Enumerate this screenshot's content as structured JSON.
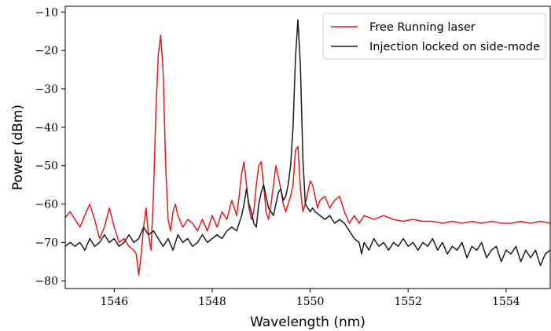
{
  "chart_data": {
    "type": "line",
    "xlabel": "Wavelength (nm)",
    "ylabel": "Power (dBm)",
    "xlim": [
      1545,
      1554.9
    ],
    "ylim": [
      -82,
      -8.5
    ],
    "xticks": [
      1546,
      1548,
      1550,
      1552,
      1554
    ],
    "yticks": [
      -80,
      -70,
      -60,
      -50,
      -40,
      -30,
      -20,
      -10
    ],
    "grid": false,
    "legend_position": "top-right",
    "series": [
      {
        "name": "Free Running laser",
        "color": "#e41a1c",
        "points": [
          [
            1545.0,
            -63.5
          ],
          [
            1545.1,
            -62
          ],
          [
            1545.2,
            -64
          ],
          [
            1545.3,
            -66
          ],
          [
            1545.4,
            -63
          ],
          [
            1545.5,
            -60
          ],
          [
            1545.6,
            -64
          ],
          [
            1545.7,
            -69
          ],
          [
            1545.8,
            -66
          ],
          [
            1545.9,
            -61
          ],
          [
            1546.0,
            -66
          ],
          [
            1546.1,
            -70
          ],
          [
            1546.2,
            -69
          ],
          [
            1546.3,
            -71
          ],
          [
            1546.4,
            -72
          ],
          [
            1546.45,
            -73
          ],
          [
            1546.5,
            -78.5
          ],
          [
            1546.55,
            -73
          ],
          [
            1546.6,
            -66
          ],
          [
            1546.65,
            -61
          ],
          [
            1546.7,
            -68
          ],
          [
            1546.75,
            -72
          ],
          [
            1546.8,
            -58
          ],
          [
            1546.85,
            -36
          ],
          [
            1546.9,
            -21
          ],
          [
            1546.95,
            -16
          ],
          [
            1547.0,
            -26
          ],
          [
            1547.05,
            -50
          ],
          [
            1547.1,
            -64
          ],
          [
            1547.15,
            -67
          ],
          [
            1547.2,
            -62
          ],
          [
            1547.25,
            -60
          ],
          [
            1547.3,
            -63
          ],
          [
            1547.4,
            -66
          ],
          [
            1547.5,
            -64
          ],
          [
            1547.6,
            -65
          ],
          [
            1547.7,
            -67
          ],
          [
            1547.8,
            -64
          ],
          [
            1547.9,
            -67
          ],
          [
            1548.0,
            -63
          ],
          [
            1548.1,
            -66
          ],
          [
            1548.2,
            -62
          ],
          [
            1548.3,
            -64
          ],
          [
            1548.4,
            -59
          ],
          [
            1548.5,
            -63
          ],
          [
            1548.55,
            -58
          ],
          [
            1548.6,
            -52
          ],
          [
            1548.65,
            -49
          ],
          [
            1548.7,
            -55
          ],
          [
            1548.75,
            -61
          ],
          [
            1548.8,
            -64
          ],
          [
            1548.85,
            -62
          ],
          [
            1548.9,
            -55
          ],
          [
            1548.95,
            -50
          ],
          [
            1549.0,
            -49
          ],
          [
            1549.05,
            -55
          ],
          [
            1549.1,
            -62
          ],
          [
            1549.15,
            -64
          ],
          [
            1549.2,
            -60
          ],
          [
            1549.25,
            -55
          ],
          [
            1549.3,
            -50
          ],
          [
            1549.35,
            -53
          ],
          [
            1549.4,
            -56
          ],
          [
            1549.45,
            -60
          ],
          [
            1549.5,
            -62
          ],
          [
            1549.55,
            -60
          ],
          [
            1549.6,
            -58
          ],
          [
            1549.65,
            -55
          ],
          [
            1549.7,
            -46
          ],
          [
            1549.75,
            -45
          ],
          [
            1549.8,
            -56
          ],
          [
            1549.85,
            -62
          ],
          [
            1549.9,
            -60
          ],
          [
            1549.95,
            -57
          ],
          [
            1550.0,
            -54
          ],
          [
            1550.05,
            -55
          ],
          [
            1550.1,
            -58
          ],
          [
            1550.15,
            -61
          ],
          [
            1550.2,
            -59
          ],
          [
            1550.3,
            -58
          ],
          [
            1550.4,
            -61
          ],
          [
            1550.5,
            -59
          ],
          [
            1550.6,
            -58
          ],
          [
            1550.7,
            -62
          ],
          [
            1550.8,
            -65
          ],
          [
            1550.9,
            -63
          ],
          [
            1551.0,
            -65
          ],
          [
            1551.1,
            -63
          ],
          [
            1551.3,
            -64
          ],
          [
            1551.5,
            -63
          ],
          [
            1551.7,
            -64
          ],
          [
            1551.9,
            -64.5
          ],
          [
            1552.1,
            -64
          ],
          [
            1552.3,
            -64.5
          ],
          [
            1552.5,
            -64.5
          ],
          [
            1552.7,
            -65
          ],
          [
            1552.9,
            -64.5
          ],
          [
            1553.1,
            -65
          ],
          [
            1553.3,
            -64.5
          ],
          [
            1553.5,
            -65
          ],
          [
            1553.7,
            -64.5
          ],
          [
            1553.9,
            -65
          ],
          [
            1554.1,
            -65
          ],
          [
            1554.3,
            -64.5
          ],
          [
            1554.5,
            -65
          ],
          [
            1554.7,
            -64.5
          ],
          [
            1554.9,
            -65
          ]
        ]
      },
      {
        "name": "Injection locked on side-mode",
        "color": "#1a1a1a",
        "points": [
          [
            1545.0,
            -71
          ],
          [
            1545.1,
            -70
          ],
          [
            1545.2,
            -71
          ],
          [
            1545.3,
            -70
          ],
          [
            1545.4,
            -72
          ],
          [
            1545.5,
            -69
          ],
          [
            1545.6,
            -71
          ],
          [
            1545.7,
            -70
          ],
          [
            1545.8,
            -68
          ],
          [
            1545.9,
            -70
          ],
          [
            1546.0,
            -69
          ],
          [
            1546.1,
            -71
          ],
          [
            1546.2,
            -70
          ],
          [
            1546.3,
            -68
          ],
          [
            1546.4,
            -70
          ],
          [
            1546.5,
            -69
          ],
          [
            1546.6,
            -66
          ],
          [
            1546.7,
            -68
          ],
          [
            1546.8,
            -67
          ],
          [
            1546.9,
            -69
          ],
          [
            1547.0,
            -71
          ],
          [
            1547.1,
            -69
          ],
          [
            1547.2,
            -72
          ],
          [
            1547.3,
            -68
          ],
          [
            1547.4,
            -70
          ],
          [
            1547.5,
            -69
          ],
          [
            1547.6,
            -71
          ],
          [
            1547.7,
            -70
          ],
          [
            1547.8,
            -68
          ],
          [
            1547.9,
            -70
          ],
          [
            1548.0,
            -69
          ],
          [
            1548.1,
            -68
          ],
          [
            1548.2,
            -69
          ],
          [
            1548.3,
            -67
          ],
          [
            1548.4,
            -66
          ],
          [
            1548.5,
            -67
          ],
          [
            1548.6,
            -63
          ],
          [
            1548.65,
            -60
          ],
          [
            1548.7,
            -56
          ],
          [
            1548.75,
            -60
          ],
          [
            1548.8,
            -62
          ],
          [
            1548.85,
            -65
          ],
          [
            1548.9,
            -66
          ],
          [
            1548.95,
            -60
          ],
          [
            1549.0,
            -57
          ],
          [
            1549.05,
            -55
          ],
          [
            1549.1,
            -58
          ],
          [
            1549.15,
            -61
          ],
          [
            1549.2,
            -62
          ],
          [
            1549.25,
            -63
          ],
          [
            1549.3,
            -60
          ],
          [
            1549.35,
            -57
          ],
          [
            1549.4,
            -56
          ],
          [
            1549.45,
            -59
          ],
          [
            1549.5,
            -58
          ],
          [
            1549.55,
            -55
          ],
          [
            1549.6,
            -50
          ],
          [
            1549.65,
            -40
          ],
          [
            1549.7,
            -22
          ],
          [
            1549.75,
            -12
          ],
          [
            1549.8,
            -24
          ],
          [
            1549.85,
            -48
          ],
          [
            1549.9,
            -60
          ],
          [
            1549.95,
            -61
          ],
          [
            1550.0,
            -62
          ],
          [
            1550.05,
            -61
          ],
          [
            1550.1,
            -62
          ],
          [
            1550.2,
            -63
          ],
          [
            1550.3,
            -64
          ],
          [
            1550.4,
            -63
          ],
          [
            1550.5,
            -65
          ],
          [
            1550.6,
            -64
          ],
          [
            1550.7,
            -65
          ],
          [
            1550.8,
            -67
          ],
          [
            1550.9,
            -69
          ],
          [
            1551.0,
            -70
          ],
          [
            1551.05,
            -73
          ],
          [
            1551.1,
            -70
          ],
          [
            1551.2,
            -72
          ],
          [
            1551.3,
            -69
          ],
          [
            1551.4,
            -71
          ],
          [
            1551.5,
            -70
          ],
          [
            1551.6,
            -72
          ],
          [
            1551.7,
            -70
          ],
          [
            1551.8,
            -71
          ],
          [
            1551.9,
            -69
          ],
          [
            1552.0,
            -71
          ],
          [
            1552.1,
            -70
          ],
          [
            1552.2,
            -72
          ],
          [
            1552.3,
            -70
          ],
          [
            1552.4,
            -71
          ],
          [
            1552.5,
            -69
          ],
          [
            1552.6,
            -72
          ],
          [
            1552.7,
            -70
          ],
          [
            1552.8,
            -73
          ],
          [
            1552.9,
            -71
          ],
          [
            1553.0,
            -72
          ],
          [
            1553.1,
            -70
          ],
          [
            1553.2,
            -74
          ],
          [
            1553.3,
            -71
          ],
          [
            1553.4,
            -72
          ],
          [
            1553.5,
            -70
          ],
          [
            1553.6,
            -74
          ],
          [
            1553.7,
            -72
          ],
          [
            1553.8,
            -71
          ],
          [
            1553.9,
            -75
          ],
          [
            1554.0,
            -72
          ],
          [
            1554.1,
            -73
          ],
          [
            1554.2,
            -71
          ],
          [
            1554.3,
            -75
          ],
          [
            1554.4,
            -72
          ],
          [
            1554.5,
            -74
          ],
          [
            1554.6,
            -72
          ],
          [
            1554.7,
            -76
          ],
          [
            1554.8,
            -73
          ],
          [
            1554.9,
            -72
          ]
        ]
      }
    ]
  }
}
